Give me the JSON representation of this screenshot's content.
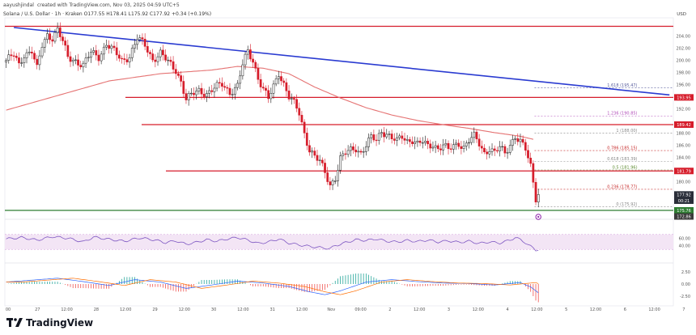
{
  "header": {
    "author": "aayushjindal",
    "published": "created with TradingView.com, Nov 03, 2025 04:59 UTC+5"
  },
  "title": "Solana / U.S. Dollar · 1h · Kraken O177.55 H178.41 L175.92 C177.92 +0.34 (+0.19%)",
  "currency": "USD",
  "chart_data": {
    "type": "candlestick",
    "series": [
      {
        "name": "SOLUSD 1h",
        "anchor_closes": [
          [
            0,
            200.0
          ],
          [
            3,
            200.8
          ],
          [
            5,
            199.2
          ],
          [
            7,
            201.0
          ],
          [
            10,
            201.6
          ],
          [
            12,
            198.5
          ],
          [
            14,
            202.4
          ],
          [
            16,
            204.2
          ],
          [
            18,
            203.8
          ],
          [
            20,
            205.1
          ],
          [
            22,
            203.0
          ],
          [
            24,
            200.4
          ],
          [
            27,
            200.0
          ],
          [
            30,
            199.2
          ],
          [
            33,
            201.2
          ],
          [
            36,
            200.6
          ],
          [
            39,
            202.8
          ],
          [
            42,
            201.4
          ],
          [
            45,
            199.9
          ],
          [
            48,
            200.8
          ],
          [
            51,
            203.6
          ],
          [
            54,
            202.4
          ],
          [
            57,
            200.2
          ],
          [
            60,
            201.2
          ],
          [
            63,
            199.6
          ],
          [
            66,
            198.4
          ],
          [
            68,
            196.6
          ],
          [
            70,
            193.6
          ],
          [
            72,
            194.2
          ],
          [
            75,
            195.0
          ],
          [
            78,
            194.6
          ],
          [
            81,
            195.4
          ],
          [
            84,
            196.0
          ],
          [
            87,
            194.8
          ],
          [
            90,
            195.8
          ],
          [
            92,
            199.2
          ],
          [
            94,
            201.4
          ],
          [
            96,
            200.0
          ],
          [
            98,
            197.2
          ],
          [
            100,
            195.2
          ],
          [
            102,
            193.6
          ],
          [
            104,
            195.6
          ],
          [
            106,
            198.0
          ],
          [
            108,
            196.2
          ],
          [
            110,
            194.0
          ],
          [
            112,
            192.8
          ],
          [
            114,
            191.2
          ],
          [
            116,
            188.0
          ],
          [
            118,
            185.4
          ],
          [
            120,
            184.2
          ],
          [
            122,
            183.2
          ],
          [
            124,
            181.5
          ],
          [
            126,
            179.5
          ],
          [
            128,
            180.8
          ],
          [
            130,
            183.8
          ],
          [
            132,
            184.6
          ],
          [
            134,
            185.2
          ],
          [
            136,
            185.6
          ],
          [
            138,
            184.8
          ],
          [
            140,
            186.0
          ],
          [
            142,
            187.2
          ],
          [
            144,
            186.8
          ],
          [
            146,
            188.4
          ],
          [
            148,
            188.0
          ],
          [
            150,
            187.2
          ],
          [
            152,
            186.6
          ],
          [
            154,
            187.4
          ],
          [
            156,
            186.8
          ],
          [
            158,
            187.0
          ],
          [
            160,
            186.2
          ],
          [
            162,
            186.5
          ],
          [
            164,
            185.8
          ],
          [
            166,
            186.2
          ],
          [
            168,
            185.6
          ],
          [
            170,
            186.0
          ],
          [
            172,
            185.2
          ],
          [
            174,
            185.8
          ],
          [
            176,
            186.4
          ],
          [
            178,
            185.8
          ],
          [
            180,
            186.8
          ],
          [
            182,
            187.4
          ],
          [
            184,
            186.2
          ],
          [
            186,
            184.8
          ],
          [
            188,
            185.6
          ],
          [
            190,
            184.8
          ],
          [
            192,
            185.6
          ],
          [
            194,
            184.6
          ],
          [
            196,
            186.2
          ],
          [
            198,
            187.6
          ],
          [
            200,
            186.6
          ],
          [
            202,
            185.2
          ],
          [
            204,
            182.5
          ],
          [
            206,
            177.4
          ],
          [
            207,
            177.92
          ]
        ]
      },
      {
        "name": "Moving average",
        "anchor_values": [
          [
            0,
            191.8
          ],
          [
            20,
            194.2
          ],
          [
            40,
            196.6
          ],
          [
            60,
            197.8
          ],
          [
            80,
            198.4
          ],
          [
            90,
            199.0
          ],
          [
            100,
            198.7
          ],
          [
            110,
            197.8
          ],
          [
            120,
            195.6
          ],
          [
            130,
            193.8
          ],
          [
            140,
            192.2
          ],
          [
            150,
            191.0
          ],
          [
            160,
            190.1
          ],
          [
            170,
            189.4
          ],
          [
            180,
            188.8
          ],
          [
            190,
            188.1
          ],
          [
            200,
            187.5
          ],
          [
            205,
            187.0
          ]
        ]
      }
    ],
    "x_ticks": [
      "00",
      "27",
      "12:00",
      "28",
      "12:00",
      "29",
      "12:00",
      "30",
      "12:00",
      "31",
      "12:00",
      "Nov",
      "09:00",
      "2",
      "12:00",
      "3",
      "12:00",
      "4",
      "12:00",
      "5",
      "12:00",
      "6",
      "12:00",
      "7"
    ],
    "y_ticks": [
      "204.00",
      "202.00",
      "200.00",
      "198.00",
      "196.00",
      "192.00",
      "188.00",
      "186.00",
      "184.00",
      "180.00"
    ],
    "ylim": [
      174.5,
      207
    ],
    "trendline": {
      "from": [
        3,
        205.4
      ],
      "to": [
        258,
        194.3
      ],
      "color": "#2a3bd1"
    },
    "horizontal_lines": [
      {
        "value": 205.6,
        "color": "#d61d2b",
        "label": ""
      },
      {
        "value": 193.9,
        "color": "#d61d2b",
        "label": "193.95"
      },
      {
        "value": 189.42,
        "color": "#d61d2b",
        "label": "189.42"
      },
      {
        "value": 181.79,
        "color": "#d61d2b",
        "label": "181.79"
      },
      {
        "value": 175.3,
        "color": "#2e7d32",
        "label": ""
      }
    ],
    "fibonacci": [
      {
        "ratio": "1.618 (195.47)",
        "value": 195.47,
        "color": "#5a5f9e"
      },
      {
        "ratio": "1.236 (190.85)",
        "value": 190.85,
        "color": "#b04ab8"
      },
      {
        "ratio": "1 (188.00)",
        "value": 188.0,
        "color": "#888888"
      },
      {
        "ratio": "0.786 (185.15)",
        "value": 185.15,
        "color": "#c62828"
      },
      {
        "ratio": "0.618 (183.39)",
        "value": 183.39,
        "color": "#888888"
      },
      {
        "ratio": "0.5 (181.96)",
        "value": 181.96,
        "color": "#5e8c31"
      },
      {
        "ratio": "0.236 (178.77)",
        "value": 178.77,
        "color": "#c62828"
      },
      {
        "ratio": "0 (175.92)",
        "value": 175.92,
        "color": "#888888"
      }
    ],
    "price_tags": [
      {
        "label": "177.92",
        "value": 177.92,
        "color": "#2a2e39"
      },
      {
        "label": "00:21",
        "value": 177.1,
        "color": "#2a2e39"
      },
      {
        "label": "175.76",
        "value": 175.7,
        "color": "#2e7d32"
      },
      {
        "label": "172.86",
        "value": 174.9,
        "color": "#3b3b3b"
      }
    ],
    "rsi": {
      "anchor_values": [
        [
          0,
          58
        ],
        [
          6,
          62
        ],
        [
          12,
          55
        ],
        [
          18,
          64
        ],
        [
          24,
          60
        ],
        [
          30,
          50
        ],
        [
          34,
          63
        ],
        [
          40,
          57
        ],
        [
          46,
          52
        ],
        [
          52,
          61
        ],
        [
          58,
          55
        ],
        [
          62,
          48
        ],
        [
          66,
          53
        ],
        [
          70,
          44
        ],
        [
          74,
          49
        ],
        [
          78,
          56
        ],
        [
          82,
          52
        ],
        [
          86,
          58
        ],
        [
          90,
          62
        ],
        [
          94,
          55
        ],
        [
          98,
          46
        ],
        [
          102,
          50
        ],
        [
          106,
          58
        ],
        [
          110,
          47
        ],
        [
          114,
          42
        ],
        [
          118,
          38
        ],
        [
          122,
          35
        ],
        [
          126,
          32
        ],
        [
          128,
          40
        ],
        [
          132,
          48
        ],
        [
          136,
          56
        ],
        [
          140,
          54
        ],
        [
          144,
          58
        ],
        [
          148,
          52
        ],
        [
          152,
          50
        ],
        [
          156,
          54
        ],
        [
          160,
          51
        ],
        [
          164,
          55
        ],
        [
          168,
          50
        ],
        [
          172,
          53
        ],
        [
          176,
          49
        ],
        [
          180,
          52
        ],
        [
          184,
          46
        ],
        [
          188,
          50
        ],
        [
          192,
          47
        ],
        [
          196,
          55
        ],
        [
          198,
          62
        ],
        [
          200,
          56
        ],
        [
          202,
          48
        ],
        [
          204,
          38
        ],
        [
          206,
          28
        ],
        [
          207,
          30
        ]
      ],
      "ticks": [
        "60.00",
        "40.00"
      ],
      "band": [
        30,
        70
      ]
    },
    "macd": {
      "ticks": [
        "2.50",
        "0.00",
        "-2.50"
      ],
      "anchor_values": [
        [
          0,
          0.4
        ],
        [
          10,
          0.8
        ],
        [
          20,
          1.2
        ],
        [
          30,
          0.5
        ],
        [
          40,
          -0.3
        ],
        [
          50,
          0.9
        ],
        [
          60,
          0.4
        ],
        [
          70,
          -0.9
        ],
        [
          80,
          -0.2
        ],
        [
          90,
          0.6
        ],
        [
          100,
          0.2
        ],
        [
          110,
          -0.5
        ],
        [
          118,
          -1.6
        ],
        [
          124,
          -2.2
        ],
        [
          130,
          -1.4
        ],
        [
          140,
          0.4
        ],
        [
          150,
          0.9
        ],
        [
          160,
          0.5
        ],
        [
          170,
          0.2
        ],
        [
          180,
          0.1
        ],
        [
          190,
          -0.2
        ],
        [
          200,
          0.3
        ],
        [
          204,
          -0.6
        ],
        [
          207,
          -1.8
        ]
      ]
    }
  },
  "branding": {
    "name": "TradingView",
    "colors": {
      "bull": "#1a1a1a",
      "bear": "#d61d2b"
    }
  }
}
